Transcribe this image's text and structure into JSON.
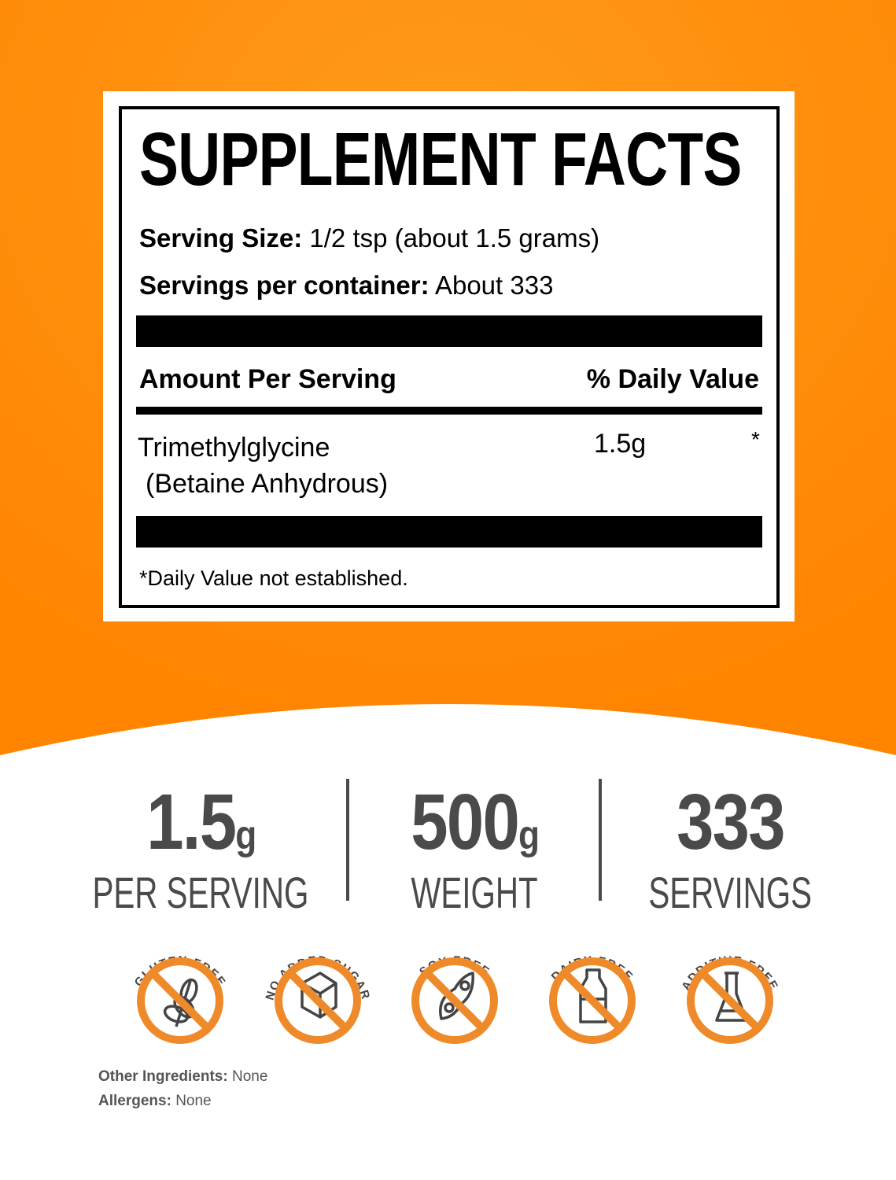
{
  "colors": {
    "orange": "#ff8a00",
    "badge_orange": "#ef8a2a",
    "text_gray": "#4a4a4a"
  },
  "facts": {
    "title": "SUPPLEMENT FACTS",
    "serving_size_label": "Serving Size:",
    "serving_size_value": "1/2 tsp (about 1.5 grams)",
    "servings_label": "Servings per container:",
    "servings_value": "About 333",
    "amount_header": "Amount Per Serving",
    "dv_header": "% Daily Value",
    "ingredient": {
      "name": "Trimethylglycine",
      "subname": "(Betaine Anhydrous)",
      "amount": "1.5g",
      "dv": "*"
    },
    "footnote": "*Daily Value not established."
  },
  "stats": [
    {
      "value": "1.5",
      "unit": "g",
      "caption": "PER SERVING"
    },
    {
      "value": "500",
      "unit": "g",
      "caption": "WEIGHT"
    },
    {
      "value": "333",
      "unit": "",
      "caption": "SERVINGS"
    }
  ],
  "badges": [
    {
      "label": "GLUTEN FREE",
      "icon": "wheat-icon"
    },
    {
      "label": "NO ADDED SUGAR",
      "icon": "sugar-cube-icon"
    },
    {
      "label": "SOY FREE",
      "icon": "soybean-icon"
    },
    {
      "label": "DAIRY FREE",
      "icon": "milk-bottle-icon"
    },
    {
      "label": "ADDITIVE FREE",
      "icon": "flask-icon"
    }
  ],
  "other_ingredients": {
    "label": "Other Ingredients:",
    "value": "None"
  },
  "allergens": {
    "label": "Allergens:",
    "value": "None"
  }
}
